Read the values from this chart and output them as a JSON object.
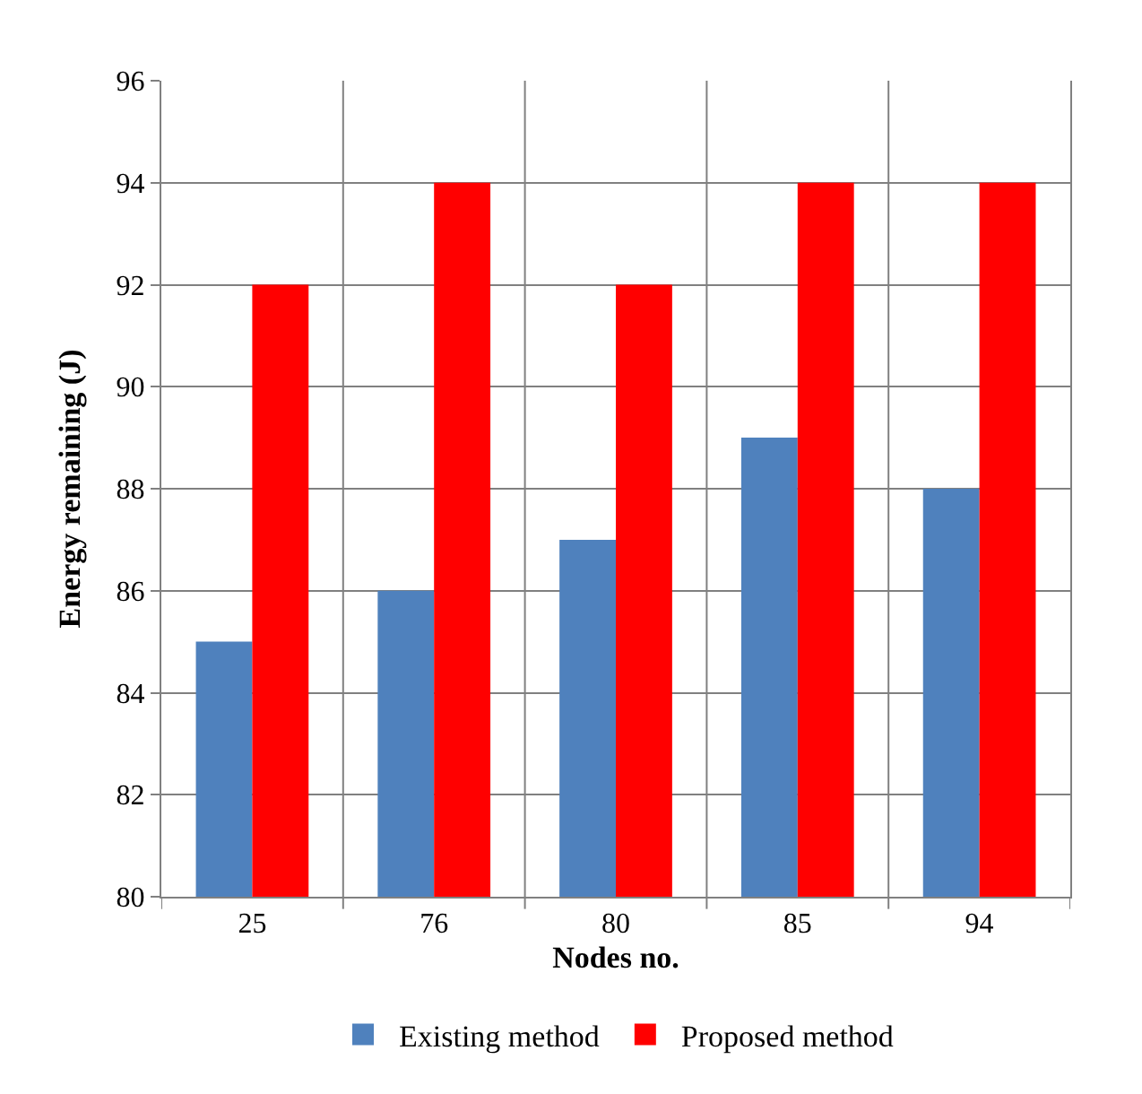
{
  "chart_data": {
    "type": "bar",
    "categories": [
      "25",
      "76",
      "80",
      "85",
      "94"
    ],
    "xlabel": "Nodes no.",
    "ylabel": "Energy remaining (J)",
    "series": [
      {
        "name": "Existing method",
        "color": "#4f81bd",
        "values": [
          85,
          86,
          87,
          89,
          88
        ]
      },
      {
        "name": "Proposed method",
        "color": "#ff0000",
        "values": [
          92,
          94,
          92,
          94,
          94
        ]
      }
    ],
    "ylim": [
      80,
      96
    ],
    "yticks": [
      80,
      82,
      84,
      86,
      88,
      90,
      92,
      94,
      96
    ],
    "grid": true,
    "legend": "bottom"
  }
}
